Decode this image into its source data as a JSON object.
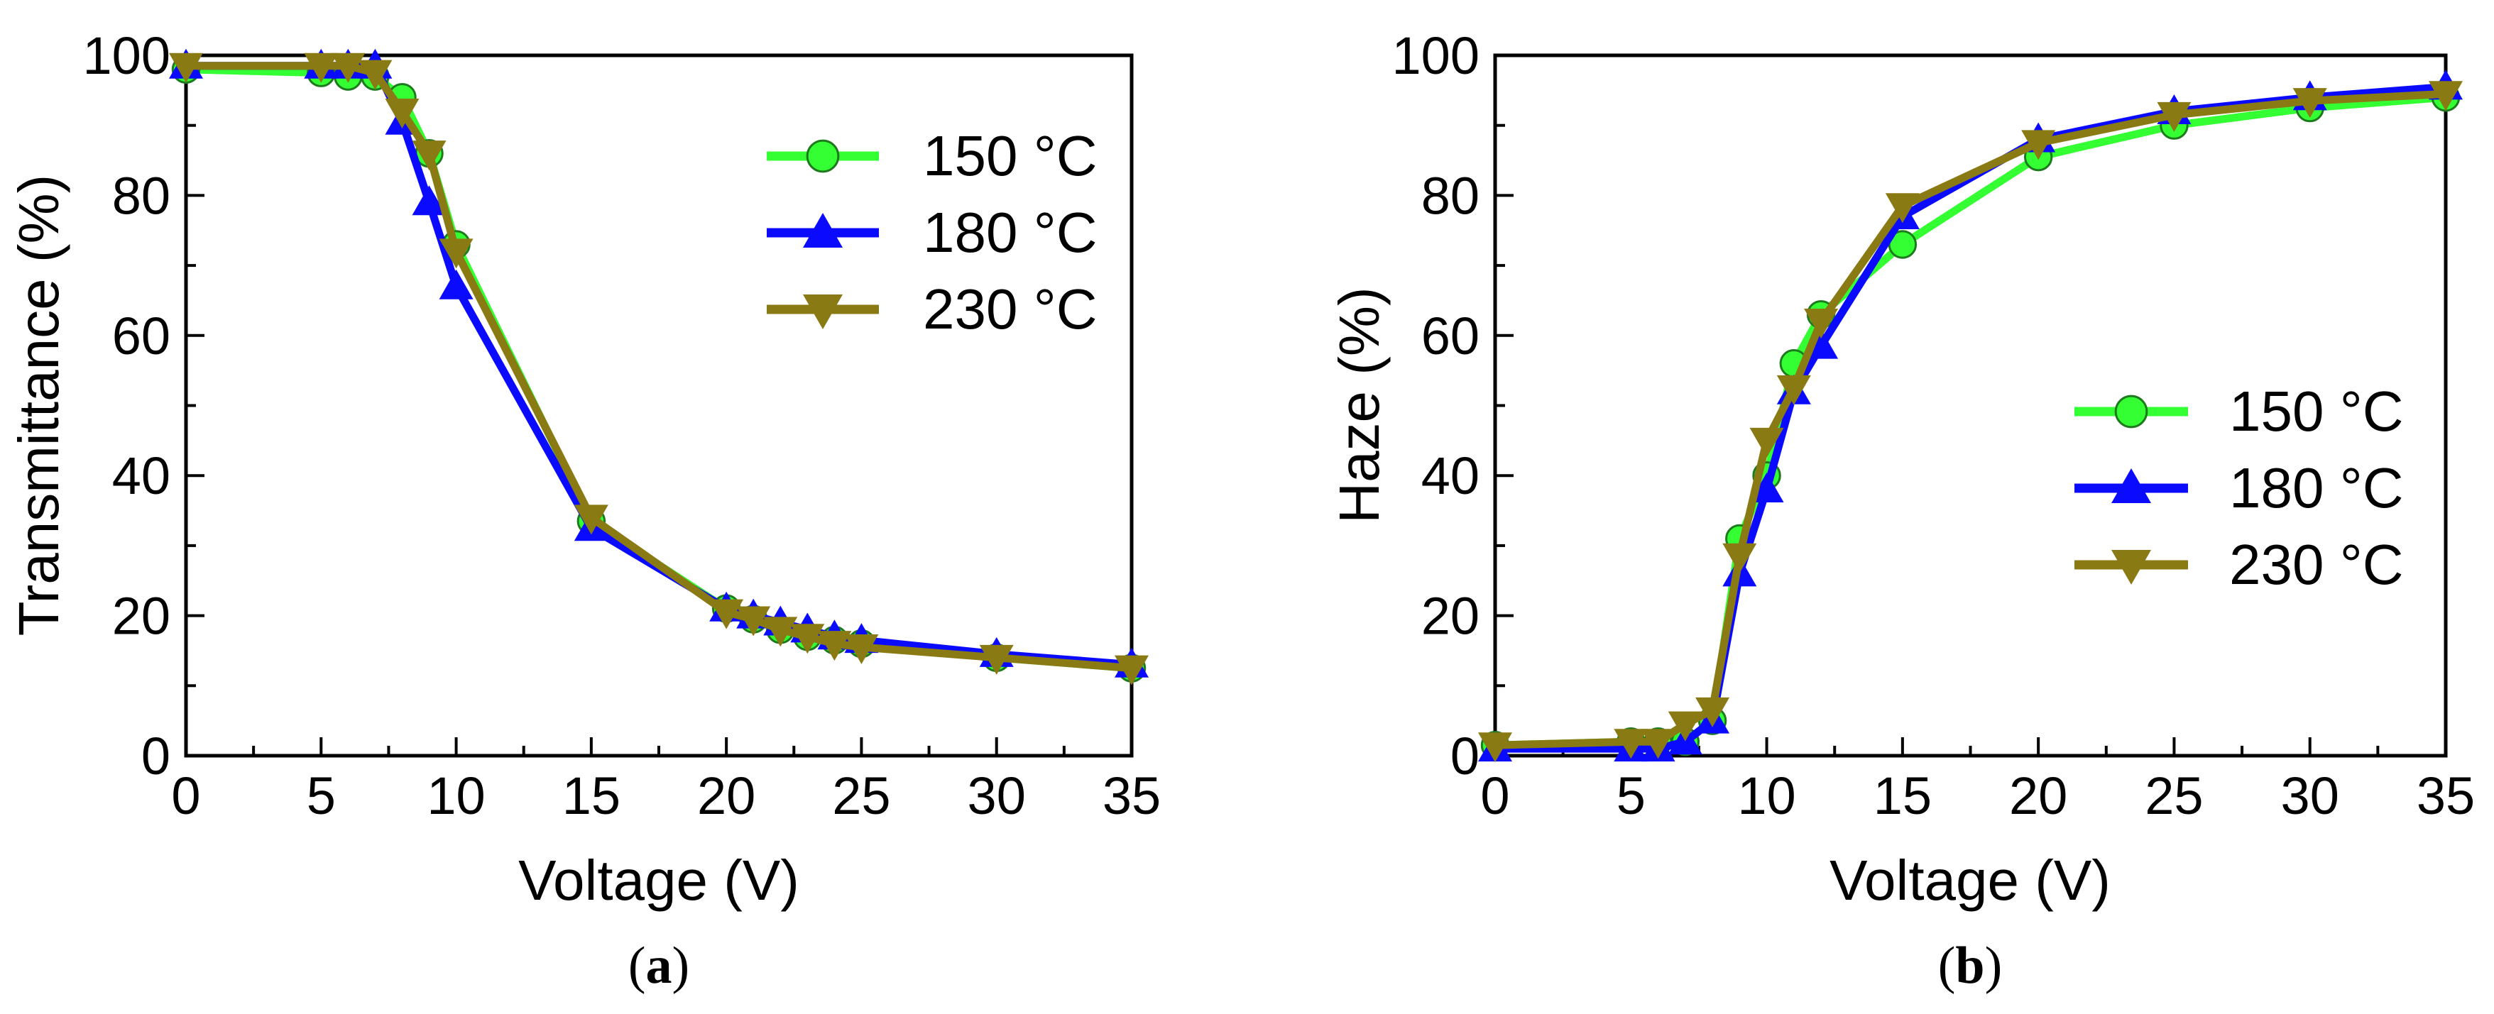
{
  "chart_data": [
    {
      "type": "line",
      "panel_label": "(a)",
      "panel_letter": "a",
      "title": "",
      "xlabel": "Voltage (V)",
      "ylabel": "Transmittance (%)",
      "xlim": [
        0,
        35
      ],
      "ylim": [
        0,
        100
      ],
      "xticks": [
        0,
        5,
        10,
        15,
        20,
        25,
        30,
        35
      ],
      "yticks": [
        0,
        20,
        40,
        60,
        80,
        100
      ],
      "grid": false,
      "legend_position": "top-right",
      "series": [
        {
          "name": "150 °C",
          "color": "#33ff33",
          "marker": "circle",
          "x": [
            0,
            5,
            6,
            7,
            8,
            9,
            10,
            15,
            20,
            21,
            22,
            23,
            24,
            25,
            30,
            35
          ],
          "y": [
            98,
            97.5,
            97,
            97,
            94,
            86,
            73,
            33.5,
            21,
            19.5,
            18,
            17,
            16.5,
            16,
            14,
            12.5
          ]
        },
        {
          "name": "180 °C",
          "color": "#0a0aff",
          "marker": "triangle-up",
          "x": [
            0,
            5,
            6,
            7,
            8,
            9,
            10,
            15,
            20,
            21,
            22,
            23,
            24,
            25,
            30,
            35
          ],
          "y": [
            98.5,
            98.5,
            98.5,
            98.5,
            90.5,
            79,
            67,
            32.5,
            21,
            20,
            19,
            18,
            17,
            16.5,
            14.5,
            13
          ]
        },
        {
          "name": "230 °C",
          "color": "#8a7a14",
          "marker": "triangle-down",
          "x": [
            0,
            5,
            6,
            7,
            8,
            9,
            10,
            15,
            20,
            21,
            22,
            23,
            24,
            25,
            30,
            35
          ],
          "y": [
            98.5,
            98.5,
            98.5,
            97.5,
            92,
            86,
            72,
            34,
            20.5,
            19.5,
            18,
            17,
            16,
            15.5,
            14,
            12.5
          ]
        }
      ]
    },
    {
      "type": "line",
      "panel_label": "(b)",
      "panel_letter": "b",
      "title": "",
      "xlabel": "Voltage (V)",
      "ylabel": "Haze (%)",
      "xlim": [
        0,
        35
      ],
      "ylim": [
        0,
        100
      ],
      "xticks": [
        0,
        5,
        10,
        15,
        20,
        25,
        30,
        35
      ],
      "yticks": [
        0,
        20,
        40,
        60,
        80,
        100
      ],
      "grid": false,
      "legend_position": "center-right",
      "series": [
        {
          "name": "150 °C",
          "color": "#33ff33",
          "marker": "circle",
          "x": [
            0,
            5,
            6,
            7,
            8,
            9,
            10,
            11,
            12,
            15,
            20,
            25,
            30,
            35
          ],
          "y": [
            1.5,
            2,
            2,
            2,
            5,
            31,
            40,
            56,
            63,
            73,
            85.5,
            90,
            92.5,
            94
          ]
        },
        {
          "name": "180 °C",
          "color": "#0a0aff",
          "marker": "triangle-up",
          "x": [
            0,
            5,
            6,
            7,
            8,
            9,
            10,
            11,
            12,
            15,
            20,
            25,
            30,
            35
          ],
          "y": [
            1,
            1,
            1,
            2,
            5,
            26,
            38,
            52,
            58.5,
            77,
            88,
            92,
            94,
            95.5
          ]
        },
        {
          "name": "230 °C",
          "color": "#8a7a14",
          "marker": "triangle-down",
          "x": [
            0,
            5,
            6,
            7,
            8,
            9,
            10,
            11,
            12,
            15,
            20,
            25,
            30,
            35
          ],
          "y": [
            1.5,
            2,
            2,
            4.5,
            6.5,
            28.5,
            45,
            52.5,
            62,
            78.5,
            87.5,
            91.5,
            93.5,
            94.5
          ]
        }
      ]
    }
  ]
}
